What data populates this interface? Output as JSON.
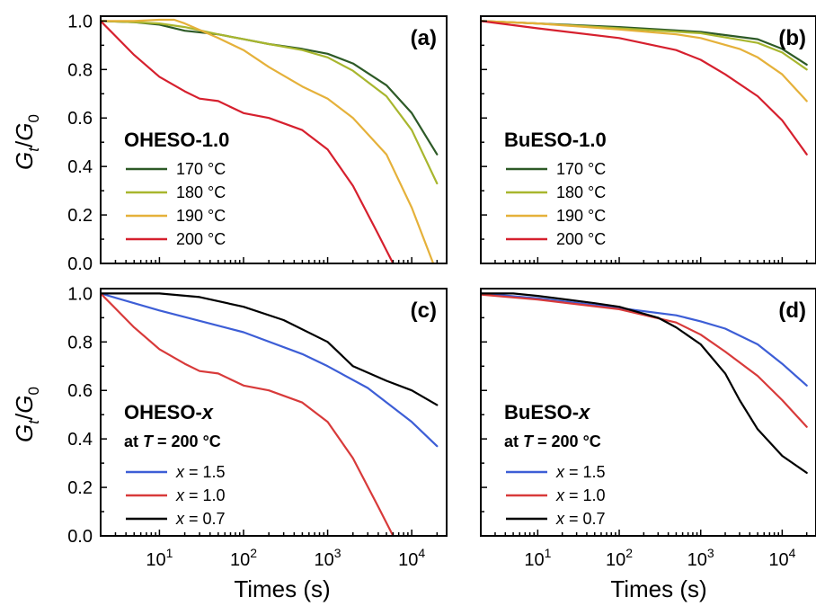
{
  "figure": {
    "ylabel_parts": [
      "G",
      "t",
      "/",
      "G",
      "0"
    ],
    "xlabel": "Times (s)"
  },
  "chart_data": [
    {
      "panel": "(a)",
      "type": "line",
      "xscale": "log",
      "xlim": [
        2,
        26000
      ],
      "ylim": [
        0.0,
        1.02
      ],
      "yticks": [
        "0.0",
        "0.2",
        "0.4",
        "0.6",
        "0.8",
        "1.0"
      ],
      "legend": {
        "title": "OHESO-1.0",
        "subtitle": "",
        "placement": "center-left"
      },
      "series": [
        {
          "name": "170 °C",
          "color": "#2d5a27",
          "x": [
            2,
            5,
            10,
            20,
            50,
            100,
            200,
            500,
            1000,
            2000,
            5000,
            10000,
            20000
          ],
          "y": [
            1.0,
            0.995,
            0.985,
            0.96,
            0.945,
            0.925,
            0.905,
            0.885,
            0.865,
            0.825,
            0.735,
            0.62,
            0.45
          ]
        },
        {
          "name": "180 °C",
          "color": "#a8b62e",
          "x": [
            2,
            5,
            10,
            20,
            50,
            100,
            200,
            500,
            1000,
            2000,
            5000,
            10000,
            20000
          ],
          "y": [
            1.0,
            0.995,
            0.99,
            0.975,
            0.945,
            0.925,
            0.905,
            0.88,
            0.85,
            0.795,
            0.69,
            0.55,
            0.33
          ]
        },
        {
          "name": "190 °C",
          "color": "#e5b13a",
          "x": [
            2,
            5,
            10,
            15,
            20,
            50,
            100,
            200,
            500,
            1000,
            2000,
            5000,
            10000,
            18000
          ],
          "y": [
            1.0,
            1.0,
            1.005,
            1.005,
            0.99,
            0.93,
            0.88,
            0.81,
            0.73,
            0.68,
            0.6,
            0.45,
            0.23,
            0.0
          ]
        },
        {
          "name": "200 °C",
          "color": "#d6202e",
          "x": [
            2,
            5,
            10,
            20,
            30,
            50,
            100,
            200,
            500,
            1000,
            2000,
            4000,
            6000
          ],
          "y": [
            1.0,
            0.86,
            0.77,
            0.71,
            0.68,
            0.67,
            0.62,
            0.6,
            0.55,
            0.47,
            0.32,
            0.12,
            0.0
          ]
        }
      ]
    },
    {
      "panel": "(b)",
      "type": "line",
      "xscale": "log",
      "xlim": [
        2,
        26000
      ],
      "ylim": [
        0.0,
        1.02
      ],
      "yticks": [
        "0.0",
        "0.2",
        "0.4",
        "0.6",
        "0.8",
        "1.0"
      ],
      "legend": {
        "title": "BuESO-1.0",
        "subtitle": "",
        "placement": "center-left"
      },
      "series": [
        {
          "name": "170 °C",
          "color": "#2d5a27",
          "x": [
            2,
            10,
            100,
            1000,
            5000,
            10000,
            20000
          ],
          "y": [
            1.0,
            0.99,
            0.975,
            0.955,
            0.925,
            0.885,
            0.82
          ]
        },
        {
          "name": "180 °C",
          "color": "#a8b62e",
          "x": [
            2,
            10,
            100,
            1000,
            5000,
            10000,
            20000
          ],
          "y": [
            1.0,
            0.99,
            0.97,
            0.95,
            0.91,
            0.87,
            0.8
          ]
        },
        {
          "name": "190 °C",
          "color": "#e5b13a",
          "x": [
            2,
            10,
            100,
            500,
            1000,
            3000,
            5000,
            10000,
            20000
          ],
          "y": [
            1.0,
            0.99,
            0.965,
            0.945,
            0.93,
            0.885,
            0.85,
            0.78,
            0.67
          ]
        },
        {
          "name": "200 °C",
          "color": "#d6202e",
          "x": [
            2,
            10,
            100,
            500,
            1000,
            2000,
            5000,
            10000,
            20000
          ],
          "y": [
            1.0,
            0.97,
            0.93,
            0.88,
            0.84,
            0.78,
            0.69,
            0.59,
            0.45
          ]
        }
      ]
    },
    {
      "panel": "(c)",
      "type": "line",
      "xscale": "log",
      "xlim": [
        2,
        26000
      ],
      "ylim": [
        0.0,
        1.02
      ],
      "yticks": [
        "0.0",
        "0.2",
        "0.4",
        "0.6",
        "0.8",
        "1.0"
      ],
      "legend": {
        "title": "OHESO-x",
        "subtitle": "at T = 200 °C",
        "placement": "center-left"
      },
      "series": [
        {
          "name": "x = 1.5",
          "color": "#3d5ed6",
          "x": [
            2,
            10,
            100,
            500,
            1000,
            3000,
            10000,
            20000
          ],
          "y": [
            1.0,
            0.93,
            0.84,
            0.75,
            0.7,
            0.61,
            0.47,
            0.37
          ]
        },
        {
          "name": "x = 1.0",
          "color": "#d83a3a",
          "x": [
            2,
            5,
            10,
            20,
            30,
            50,
            100,
            200,
            500,
            1000,
            2000,
            4000,
            6000
          ],
          "y": [
            1.0,
            0.86,
            0.77,
            0.71,
            0.68,
            0.67,
            0.62,
            0.6,
            0.55,
            0.47,
            0.32,
            0.12,
            0.0
          ]
        },
        {
          "name": "x = 0.7",
          "color": "#000000",
          "x": [
            2,
            5,
            10,
            30,
            100,
            300,
            1000,
            2000,
            5000,
            10000,
            20000
          ],
          "y": [
            1.0,
            1.0,
            1.0,
            0.985,
            0.945,
            0.89,
            0.8,
            0.7,
            0.64,
            0.6,
            0.54
          ]
        }
      ]
    },
    {
      "panel": "(d)",
      "type": "line",
      "xscale": "log",
      "xlim": [
        2,
        26000
      ],
      "ylim": [
        0.0,
        1.02
      ],
      "yticks": [
        "0.0",
        "0.2",
        "0.4",
        "0.6",
        "0.8",
        "1.0"
      ],
      "legend": {
        "title": "BuESO-x",
        "subtitle": "at T = 200 °C",
        "placement": "center-left"
      },
      "series": [
        {
          "name": "x = 1.5",
          "color": "#3d5ed6",
          "x": [
            2,
            10,
            100,
            500,
            1000,
            2000,
            5000,
            10000,
            20000
          ],
          "y": [
            1.0,
            0.98,
            0.94,
            0.91,
            0.885,
            0.855,
            0.79,
            0.71,
            0.62
          ]
        },
        {
          "name": "x = 1.0",
          "color": "#d83a3a",
          "x": [
            2,
            10,
            100,
            500,
            1000,
            2000,
            5000,
            10000,
            20000
          ],
          "y": [
            0.995,
            0.975,
            0.935,
            0.88,
            0.83,
            0.76,
            0.66,
            0.56,
            0.45
          ]
        },
        {
          "name": "x = 0.7",
          "color": "#000000",
          "x": [
            2,
            5,
            10,
            50,
            100,
            300,
            500,
            1000,
            2000,
            3000,
            5000,
            10000,
            20000
          ],
          "y": [
            1.0,
            1.0,
            0.99,
            0.96,
            0.945,
            0.9,
            0.86,
            0.79,
            0.67,
            0.56,
            0.44,
            0.33,
            0.26
          ]
        }
      ]
    }
  ]
}
